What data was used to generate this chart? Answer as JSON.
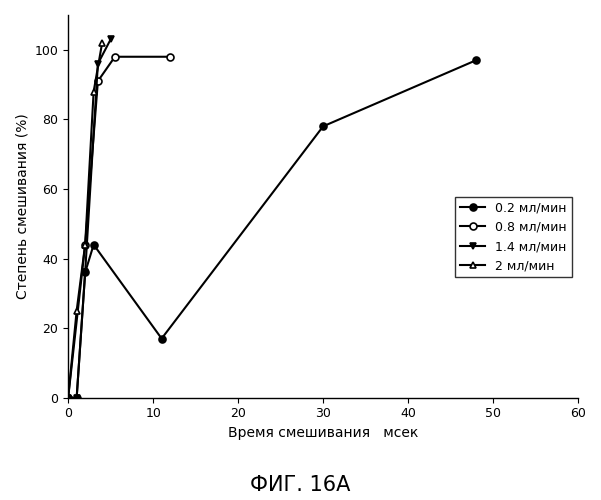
{
  "series": [
    {
      "label": "0.2 мл/мин",
      "x": [
        0,
        1,
        2,
        3,
        11,
        30,
        48
      ],
      "y": [
        0,
        0,
        36,
        44,
        17,
        78,
        97
      ],
      "marker": "o",
      "fillstyle": "full",
      "linewidth": 1.5,
      "markersize": 5
    },
    {
      "label": "0.8 мл/мин",
      "x": [
        0,
        2,
        3.5,
        5.5,
        12
      ],
      "y": [
        0,
        44,
        91,
        98,
        98
      ],
      "marker": "o",
      "fillstyle": "none",
      "linewidth": 1.5,
      "markersize": 5
    },
    {
      "label": "1.4 мл/мин",
      "x": [
        0,
        1,
        2,
        3.5,
        5
      ],
      "y": [
        0,
        0,
        36,
        96,
        103
      ],
      "marker": "v",
      "fillstyle": "full",
      "linewidth": 1.5,
      "markersize": 5
    },
    {
      "label": "2 мл/мин",
      "x": [
        0,
        1,
        2,
        3,
        4
      ],
      "y": [
        0,
        25,
        44,
        88,
        102
      ],
      "marker": "^",
      "fillstyle": "none",
      "linewidth": 1.5,
      "markersize": 5
    }
  ],
  "xlabel": "Время смешивания   мсек",
  "ylabel": "Степень смешивания (%)",
  "title": "ФИГ. 16А",
  "xlim": [
    0,
    60
  ],
  "ylim": [
    0,
    110
  ],
  "xticks": [
    0,
    10,
    20,
    30,
    40,
    50,
    60
  ],
  "yticks": [
    0,
    20,
    40,
    60,
    80,
    100
  ],
  "legend_labels": [
    "0.2 мл/мин",
    "0.8 мл/мин",
    "1.4 мл/мин",
    "2 мл/мин"
  ],
  "markers": [
    "o",
    "o",
    "v",
    "^"
  ],
  "fillstyles": [
    "full",
    "none",
    "full",
    "none"
  ],
  "background_color": "#ffffff",
  "fontsize_labels": 10,
  "fontsize_title": 15,
  "fontsize_ticks": 9,
  "fontsize_legend": 9
}
